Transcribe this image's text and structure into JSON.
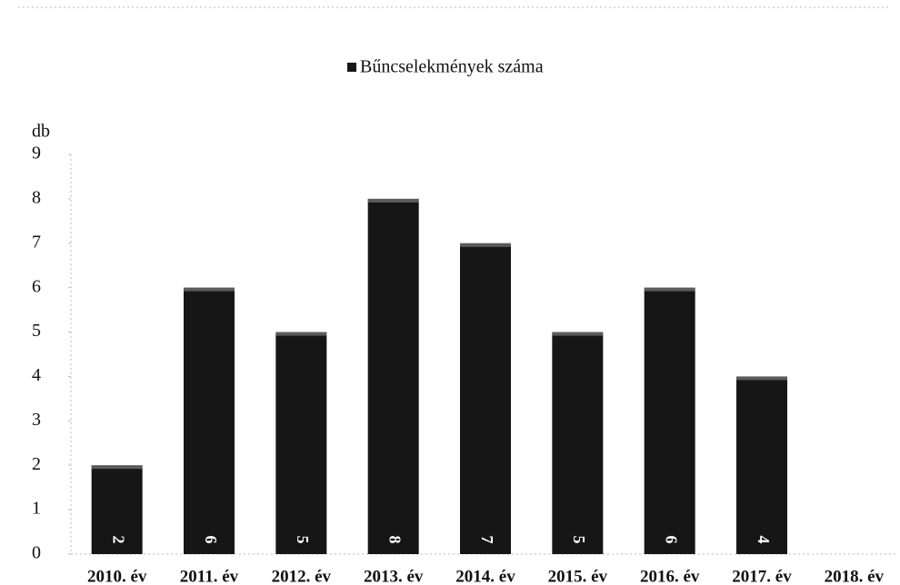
{
  "chart_data": {
    "type": "bar",
    "y_label": "db",
    "categories": [
      "2010. év",
      "2011. év",
      "2012. év",
      "2013. év",
      "2014. év",
      "2015. év",
      "2016. év",
      "2017. év",
      "2018. év"
    ],
    "series": [
      {
        "name": "Bűncselekmények száma",
        "color": "#161616",
        "values": [
          2,
          6,
          5,
          8,
          7,
          5,
          6,
          4,
          null
        ]
      }
    ],
    "ylim": [
      0,
      9
    ],
    "yticks": [
      0,
      1,
      2,
      3,
      4,
      5,
      6,
      7,
      8,
      9
    ],
    "legend": "top"
  }
}
